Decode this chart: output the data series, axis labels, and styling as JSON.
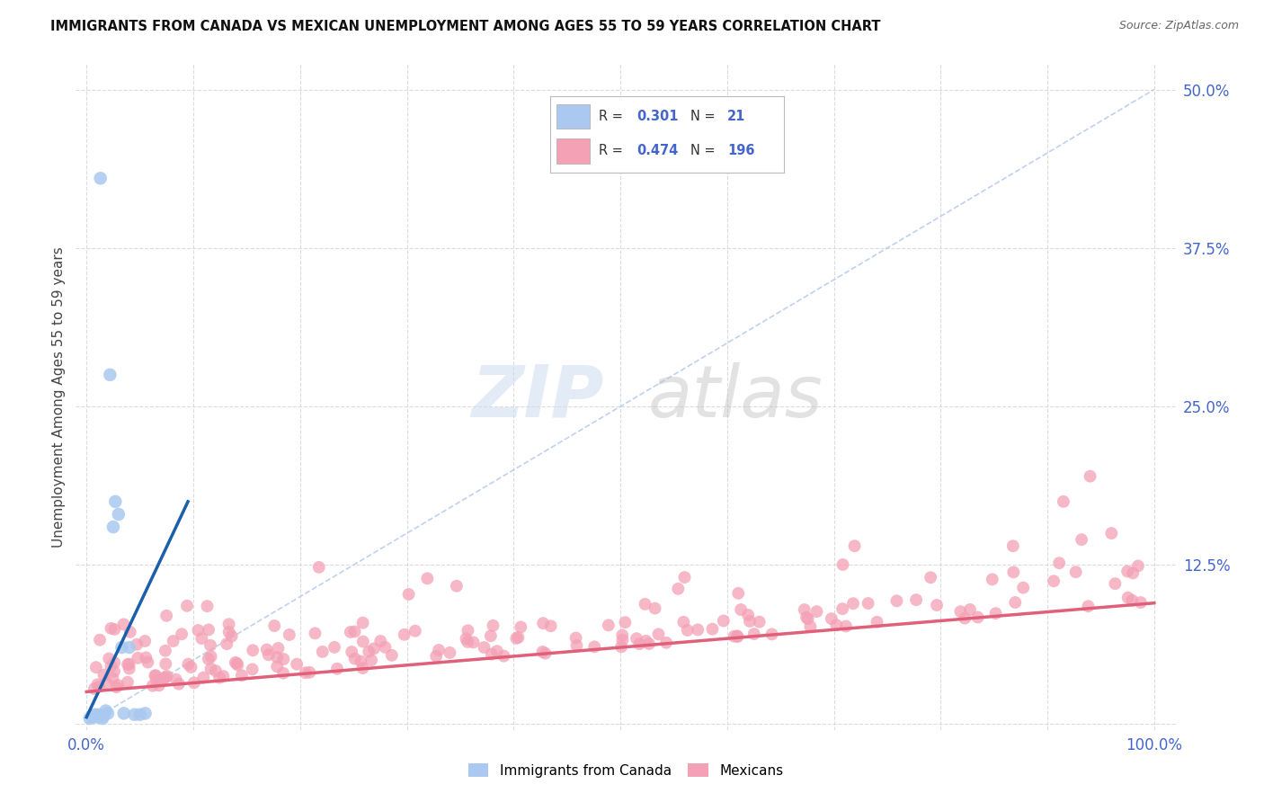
{
  "title": "IMMIGRANTS FROM CANADA VS MEXICAN UNEMPLOYMENT AMONG AGES 55 TO 59 YEARS CORRELATION CHART",
  "source": "Source: ZipAtlas.com",
  "ylabel": "Unemployment Among Ages 55 to 59 years",
  "xlim": [
    -0.01,
    1.02
  ],
  "ylim": [
    -0.005,
    0.52
  ],
  "yticks": [
    0.0,
    0.125,
    0.25,
    0.375,
    0.5
  ],
  "ytick_labels": [
    "",
    "12.5%",
    "25.0%",
    "37.5%",
    "50.0%"
  ],
  "xticks": [
    0.0,
    0.1,
    0.2,
    0.3,
    0.4,
    0.5,
    0.6,
    0.7,
    0.8,
    0.9,
    1.0
  ],
  "xtick_labels": [
    "0.0%",
    "",
    "",
    "",
    "",
    "",
    "",
    "",
    "",
    "",
    "100.0%"
  ],
  "legend_R_canada": "0.301",
  "legend_N_canada": "21",
  "legend_R_mexican": "0.474",
  "legend_N_mexican": "196",
  "canada_color": "#aac8f0",
  "mexican_color": "#f4a0b5",
  "canada_line_color": "#1a5faa",
  "mexican_line_color": "#e0607a",
  "diag_line_color": "#b8ccee",
  "tick_color": "#4466cc",
  "grid_color": "#d8d8d8",
  "canada_x": [
    0.003,
    0.005,
    0.006,
    0.008,
    0.01,
    0.011,
    0.013,
    0.015,
    0.016,
    0.018,
    0.02,
    0.022,
    0.025,
    0.027,
    0.03,
    0.033,
    0.035,
    0.04,
    0.045,
    0.05,
    0.055
  ],
  "canada_y": [
    0.004,
    0.006,
    0.005,
    0.007,
    0.005,
    0.007,
    0.43,
    0.004,
    0.006,
    0.01,
    0.008,
    0.275,
    0.155,
    0.175,
    0.165,
    0.06,
    0.008,
    0.06,
    0.007,
    0.007,
    0.008
  ],
  "canada_trend_x": [
    0.0,
    0.095
  ],
  "canada_trend_y": [
    0.005,
    0.175
  ],
  "mexican_trend_x": [
    0.0,
    1.0
  ],
  "mexican_trend_y": [
    0.025,
    0.095
  ]
}
